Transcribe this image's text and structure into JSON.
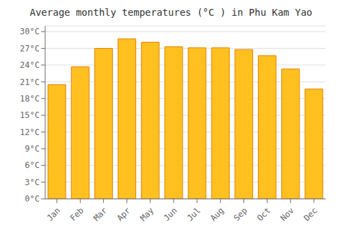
{
  "chart_data": {
    "type": "bar",
    "title": "Average monthly temperatures (°C ) in Phu Kam Yao",
    "categories": [
      "Jan",
      "Feb",
      "Mar",
      "Apr",
      "May",
      "Jun",
      "Jul",
      "Aug",
      "Sep",
      "Oct",
      "Nov",
      "Dec"
    ],
    "values": [
      20.5,
      23.7,
      27.0,
      28.7,
      28.1,
      27.3,
      27.1,
      27.1,
      26.8,
      25.7,
      23.3,
      19.7
    ],
    "color": "#FFC020",
    "ylim": [
      0,
      31
    ],
    "yticks": [
      {
        "value": 0,
        "label": "0°C"
      },
      {
        "value": 3,
        "label": "3°C"
      },
      {
        "value": 6,
        "label": "6°C"
      },
      {
        "value": 9,
        "label": "9°C"
      },
      {
        "value": 12,
        "label": "12°C"
      },
      {
        "value": 15,
        "label": "15°C"
      },
      {
        "value": 18,
        "label": "18°C"
      },
      {
        "value": 21,
        "label": "21°C"
      },
      {
        "value": 24,
        "label": "24°C"
      },
      {
        "value": 27,
        "label": "27°C"
      },
      {
        "value": 30,
        "label": "30°C"
      }
    ],
    "grid": true
  }
}
